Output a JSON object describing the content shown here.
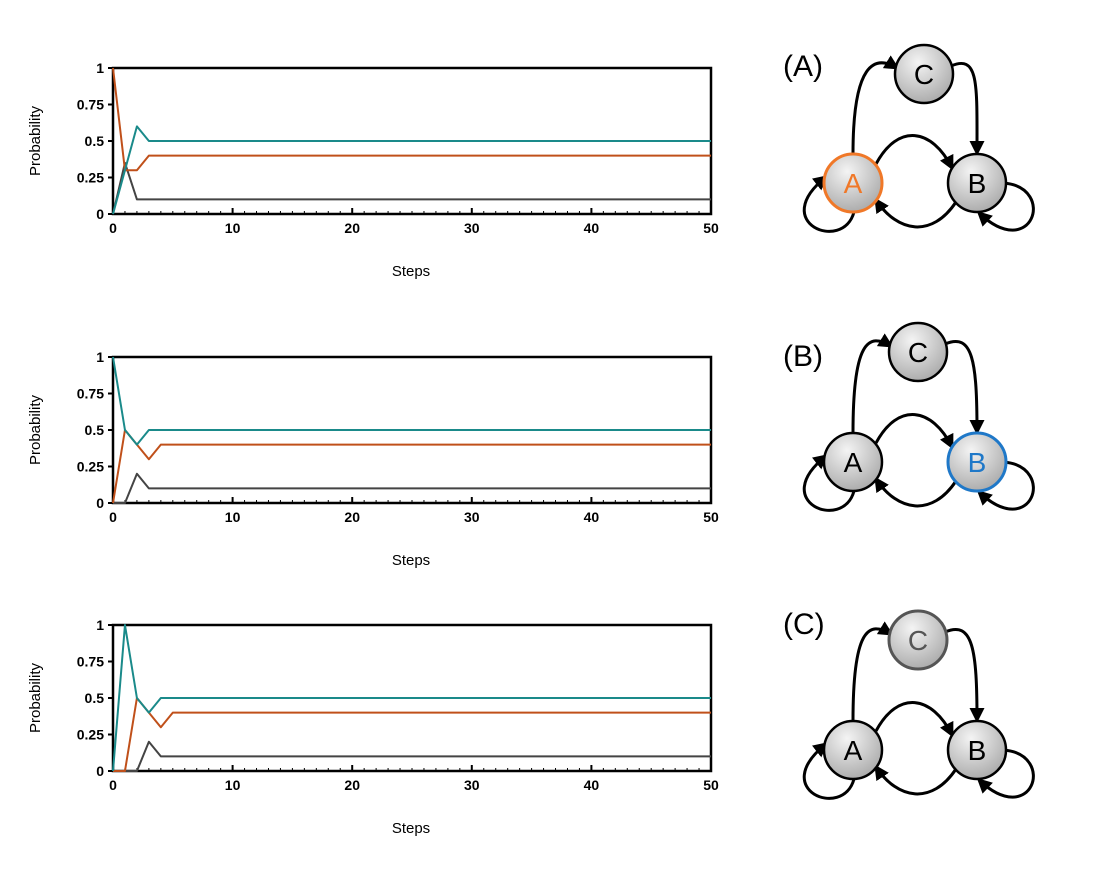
{
  "colors": {
    "teal": "#1a8a8a",
    "orange": "#c0501a",
    "gray": "#444444",
    "highlight_a": "#f07828",
    "highlight_b": "#1f78c8",
    "node_fill": "#cfcfcf",
    "dimmed": "#555555"
  },
  "chart_data": [
    {
      "type": "line",
      "xlabel": "Steps",
      "ylabel": "Probability",
      "xlim": [
        0,
        50
      ],
      "ylim": [
        0,
        1
      ],
      "x_ticks": [
        0,
        10,
        20,
        30,
        40,
        50
      ],
      "y_ticks": [
        0,
        0.25,
        0.5,
        0.75,
        1
      ],
      "y_tick_labels": [
        "0",
        "0.25",
        "0.5",
        "0.75",
        "1"
      ],
      "grid": false,
      "series": [
        {
          "color": "teal",
          "x": [
            0,
            1,
            2,
            3,
            50
          ],
          "y": [
            0,
            0.3,
            0.6,
            0.5,
            0.5
          ]
        },
        {
          "color": "orange",
          "x": [
            0,
            1,
            2,
            3,
            50
          ],
          "y": [
            1,
            0.3,
            0.3,
            0.4,
            0.4
          ]
        },
        {
          "color": "gray",
          "x": [
            0,
            1,
            2,
            50
          ],
          "y": [
            0,
            0.35,
            0.1,
            0.1
          ]
        }
      ]
    },
    {
      "type": "line",
      "xlabel": "Steps",
      "ylabel": "Probability",
      "xlim": [
        0,
        50
      ],
      "ylim": [
        0,
        1
      ],
      "x_ticks": [
        0,
        10,
        20,
        30,
        40,
        50
      ],
      "y_ticks": [
        0,
        0.25,
        0.5,
        0.75,
        1
      ],
      "y_tick_labels": [
        "0",
        "0.25",
        "0.5",
        "0.75",
        "1"
      ],
      "grid": false,
      "series": [
        {
          "color": "teal",
          "x": [
            0,
            1,
            2,
            3,
            50
          ],
          "y": [
            1,
            0.5,
            0.4,
            0.5,
            0.5
          ]
        },
        {
          "color": "orange",
          "x": [
            0,
            1,
            2,
            3,
            4,
            50
          ],
          "y": [
            0,
            0.5,
            0.4,
            0.3,
            0.4,
            0.4
          ]
        },
        {
          "color": "gray",
          "x": [
            0,
            1,
            2,
            3,
            50
          ],
          "y": [
            0,
            0,
            0.2,
            0.1,
            0.1
          ]
        }
      ]
    },
    {
      "type": "line",
      "xlabel": "Steps",
      "ylabel": "Probability",
      "xlim": [
        0,
        50
      ],
      "ylim": [
        0,
        1
      ],
      "x_ticks": [
        0,
        10,
        20,
        30,
        40,
        50
      ],
      "y_ticks": [
        0,
        0.25,
        0.5,
        0.75,
        1
      ],
      "y_tick_labels": [
        "0",
        "0.25",
        "0.5",
        "0.75",
        "1"
      ],
      "grid": false,
      "series": [
        {
          "color": "teal",
          "x": [
            0,
            1,
            2,
            3,
            4,
            50
          ],
          "y": [
            0,
            1,
            0.5,
            0.4,
            0.5,
            0.5
          ]
        },
        {
          "color": "orange",
          "x": [
            0,
            1,
            2,
            3,
            4,
            5,
            50
          ],
          "y": [
            0,
            0,
            0.5,
            0.4,
            0.3,
            0.4,
            0.4
          ]
        },
        {
          "color": "gray",
          "x": [
            0,
            1,
            2,
            3,
            4,
            50
          ],
          "y": [
            0,
            0,
            0,
            0.2,
            0.1,
            0.1
          ]
        }
      ]
    }
  ],
  "diagrams": [
    {
      "label": "(A)",
      "nodes": {
        "A": "A",
        "B": "B",
        "C": "C"
      },
      "highlight": "A",
      "highlight_color": "highlight_a"
    },
    {
      "label": "(B)",
      "nodes": {
        "A": "A",
        "B": "B",
        "C": "C"
      },
      "highlight": "B",
      "highlight_color": "highlight_b"
    },
    {
      "label": "(C)",
      "nodes": {
        "A": "A",
        "B": "B",
        "C": "C"
      },
      "highlight": "C",
      "highlight_color": "dimmed"
    }
  ]
}
